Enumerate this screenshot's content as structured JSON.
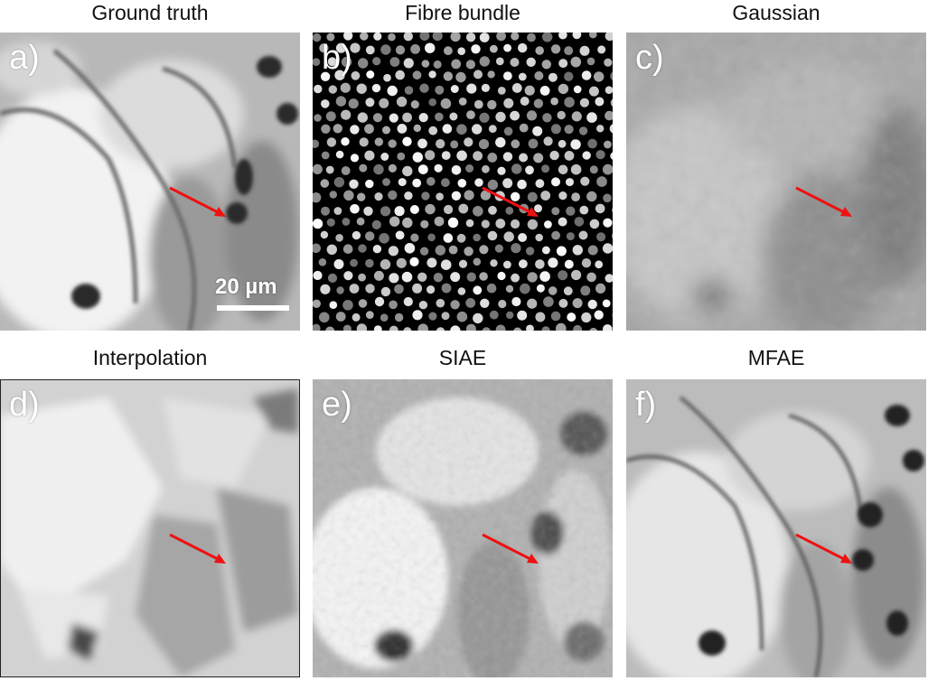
{
  "panels": [
    {
      "letter": "a)",
      "title": "Ground truth"
    },
    {
      "letter": "b)",
      "title": "Fibre bundle"
    },
    {
      "letter": "c)",
      "title": "Gaussian"
    },
    {
      "letter": "d)",
      "title": "Interpolation"
    },
    {
      "letter": "e)",
      "title": "SIAE"
    },
    {
      "letter": "f)",
      "title": "MFAE"
    }
  ],
  "scale_bar": {
    "label": "20 µm"
  },
  "colors": {
    "arrow": "#ee1111",
    "scale_bar": "#ffffff"
  }
}
